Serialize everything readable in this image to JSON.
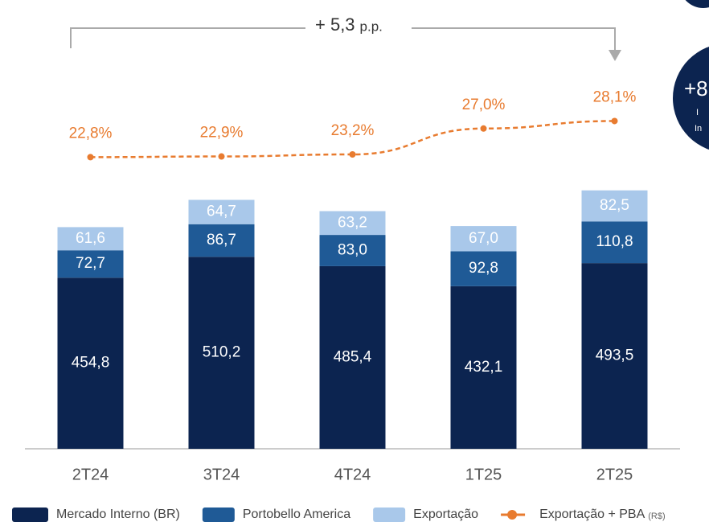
{
  "chart_data": {
    "type": "stacked_bar_line",
    "categories": [
      "2T24",
      "3T24",
      "4T24",
      "1T25",
      "2T25"
    ],
    "ylim": [
      0,
      1150
    ],
    "y2lim": [
      -20,
      43.5
    ],
    "series": [
      {
        "name": "Mercado Interno (BR)",
        "color": "#0c2450",
        "values": [
          454.8,
          510.2,
          485.4,
          432.1,
          493.5
        ],
        "value_labels": [
          "454,8",
          "510,2",
          "485,4",
          "432,1",
          "493,5"
        ]
      },
      {
        "name": "Portobello America",
        "color": "#1f5a96",
        "values": [
          72.7,
          86.7,
          83.0,
          92.8,
          110.8
        ],
        "value_labels": [
          "72,7",
          "86,7",
          "83,0",
          "92,8",
          "110,8"
        ]
      },
      {
        "name": "Exportação",
        "color": "#a9c8ea",
        "values": [
          61.6,
          64.7,
          63.2,
          67.0,
          82.5
        ],
        "value_labels": [
          "61,6",
          "64,7",
          "63,2",
          "67,0",
          "82,5"
        ]
      },
      {
        "name": "Exportação + PBA",
        "legend_note": "(R$)",
        "type": "line",
        "axis": "y2",
        "color": "#e87b2f",
        "values": [
          22.8,
          22.9,
          23.2,
          27.0,
          28.1
        ],
        "value_labels": [
          "22,8%",
          "22,9%",
          "23,2%",
          "27,0%",
          "28,1%"
        ]
      }
    ],
    "annotation": {
      "text": "+ 5,3",
      "unit": "p.p."
    },
    "badge": [
      "+8",
      "I",
      "In"
    ]
  }
}
